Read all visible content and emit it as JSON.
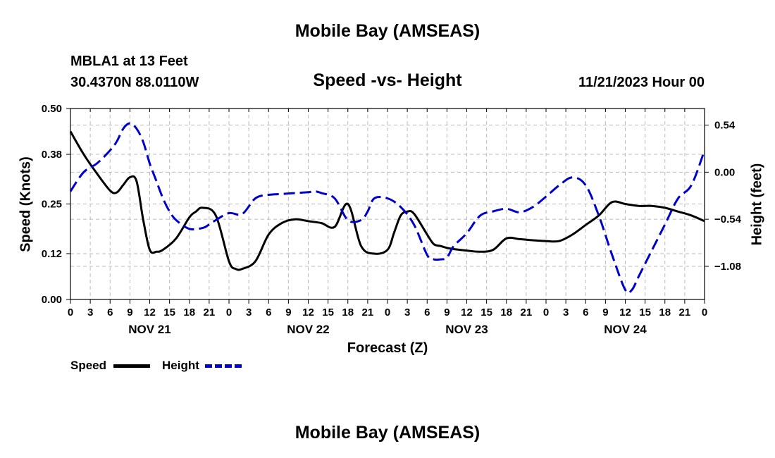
{
  "page_title": "Mobile Bay (AMSEAS)",
  "footer_title": "Mobile Bay (AMSEAS)",
  "station": {
    "name_line": "MBLA1 at 13 Feet",
    "coords_line": "30.4370N  88.0110W"
  },
  "chart_title": "Speed -vs- Height",
  "run_time": "11/21/2023 Hour 00",
  "legend": {
    "speed_label": "Speed",
    "height_label": "Height"
  },
  "colors": {
    "speed": "#000000",
    "height": "#0000cc",
    "grid": "#bbbbbb"
  },
  "chart_data": {
    "type": "line",
    "title": "Speed -vs- Height",
    "xlabel": "Forecast (Z)",
    "ylabel": "Speed (Knots)",
    "y2label": "Height (feet)",
    "x_range_hours": [
      0,
      96
    ],
    "x_tick_labels": [
      "0",
      "3",
      "6",
      "9",
      "12",
      "15",
      "18",
      "21",
      "0",
      "3",
      "6",
      "9",
      "12",
      "15",
      "18",
      "21",
      "0",
      "3",
      "6",
      "9",
      "12",
      "15",
      "18",
      "21",
      "0",
      "3",
      "6",
      "9",
      "12",
      "15",
      "18",
      "21",
      "0"
    ],
    "day_labels": [
      {
        "hour": 12,
        "label": "NOV 21"
      },
      {
        "hour": 36,
        "label": "NOV 22"
      },
      {
        "hour": 60,
        "label": "NOV 23"
      },
      {
        "hour": 84,
        "label": "NOV 24"
      }
    ],
    "ylim": [
      0.0,
      0.5
    ],
    "y_ticks": [
      0.0,
      0.12,
      0.25,
      0.38,
      0.5
    ],
    "y_tick_labels": [
      "0.00",
      "0.12",
      "0.25",
      "0.38",
      "0.50"
    ],
    "y2lim": [
      -1.46,
      0.73
    ],
    "y2_ticks": [
      -1.08,
      -0.54,
      0.0,
      0.54
    ],
    "y2_tick_labels": [
      "−1.08",
      "−0.54",
      "0.00",
      "0.54"
    ],
    "series": [
      {
        "name": "Speed",
        "axis": "left",
        "x": [
          0,
          2,
          4,
          6,
          7,
          8,
          9,
          10,
          11,
          12,
          13,
          14,
          16,
          18,
          19,
          20,
          22,
          24,
          25,
          26,
          28,
          30,
          32,
          34,
          36,
          38,
          40,
          42,
          44,
          46,
          48,
          49,
          50,
          51,
          52,
          54,
          55,
          56,
          57,
          58,
          60,
          62,
          64,
          66,
          68,
          70,
          72,
          74,
          76,
          78,
          80,
          82,
          84,
          86,
          88,
          90,
          92,
          94,
          96
        ],
        "values": [
          0.44,
          0.38,
          0.33,
          0.285,
          0.28,
          0.3,
          0.32,
          0.31,
          0.21,
          0.13,
          0.125,
          0.13,
          0.16,
          0.215,
          0.23,
          0.24,
          0.22,
          0.1,
          0.08,
          0.08,
          0.1,
          0.17,
          0.2,
          0.21,
          0.205,
          0.2,
          0.19,
          0.25,
          0.14,
          0.12,
          0.13,
          0.175,
          0.22,
          0.23,
          0.225,
          0.17,
          0.145,
          0.14,
          0.135,
          0.132,
          0.128,
          0.125,
          0.13,
          0.16,
          0.158,
          0.155,
          0.153,
          0.153,
          0.17,
          0.195,
          0.22,
          0.255,
          0.25,
          0.245,
          0.245,
          0.24,
          0.23,
          0.22,
          0.205
        ]
      },
      {
        "name": "Height",
        "axis": "right",
        "x": [
          0,
          2,
          4,
          6,
          7,
          8,
          9,
          10,
          11,
          12,
          13,
          14,
          15,
          16,
          18,
          20,
          21,
          22,
          24,
          26,
          28,
          30,
          32,
          34,
          36,
          37,
          38,
          40,
          42,
          44,
          45,
          46,
          48,
          50,
          52,
          54,
          55,
          56,
          57,
          58,
          60,
          62,
          64,
          66,
          68,
          70,
          72,
          74,
          76,
          78,
          80,
          82,
          84,
          85,
          86,
          88,
          90,
          92,
          94,
          96
        ],
        "values": [
          -0.22,
          0.0,
          0.1,
          0.25,
          0.35,
          0.5,
          0.56,
          0.5,
          0.35,
          0.1,
          -0.1,
          -0.3,
          -0.45,
          -0.55,
          -0.65,
          -0.64,
          -0.6,
          -0.55,
          -0.47,
          -0.48,
          -0.3,
          -0.26,
          -0.25,
          -0.24,
          -0.23,
          -0.22,
          -0.24,
          -0.3,
          -0.55,
          -0.55,
          -0.45,
          -0.3,
          -0.3,
          -0.4,
          -0.6,
          -0.95,
          -1.0,
          -1.0,
          -0.98,
          -0.85,
          -0.7,
          -0.5,
          -0.45,
          -0.42,
          -0.46,
          -0.4,
          -0.28,
          -0.15,
          -0.06,
          -0.15,
          -0.5,
          -0.95,
          -1.35,
          -1.35,
          -1.2,
          -0.9,
          -0.6,
          -0.3,
          -0.15,
          0.25
        ]
      }
    ],
    "legend_position": "bottom-left"
  }
}
